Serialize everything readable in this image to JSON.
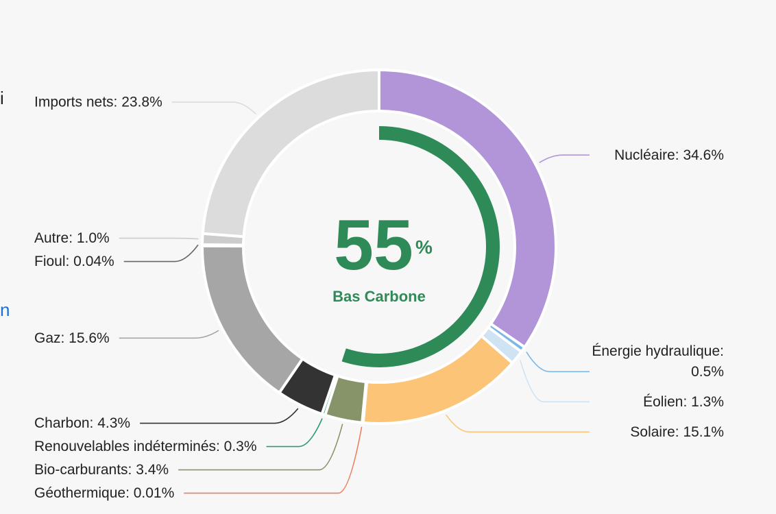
{
  "edge_text": {
    "left_top": "i",
    "left_middle": "n"
  },
  "center": {
    "value": "55",
    "unit": "%",
    "caption": "Bas Carbone",
    "color": "#2e8b57",
    "low_carbon_fraction": 0.55
  },
  "chart_data": {
    "type": "pie",
    "title": "",
    "start": "top",
    "direction": "clockwise",
    "series": [
      {
        "name": "Nucléaire",
        "label": "Nucléaire: 34.6%",
        "value": 34.6,
        "color": "#b195d8",
        "label_side": "right"
      },
      {
        "name": "Énergie hydraulique",
        "label": [
          "Énergie hydraulique:",
          "0.5%"
        ],
        "value": 0.5,
        "color": "#7cb8e6",
        "label_side": "right"
      },
      {
        "name": "Éolien",
        "label": "Éolien: 1.3%",
        "value": 1.3,
        "color": "#cfe3f3",
        "label_side": "right"
      },
      {
        "name": "Solaire",
        "label": "Solaire: 15.1%",
        "value": 15.1,
        "color": "#fbc477",
        "label_side": "right"
      },
      {
        "name": "Géothermique",
        "label": "Géothermique: 0.01%",
        "value": 0.01,
        "color": "#ee7e5e",
        "label_side": "left"
      },
      {
        "name": "Bio-carburants",
        "label": "Bio-carburants: 3.4%",
        "value": 3.4,
        "color": "#879368",
        "label_side": "left"
      },
      {
        "name": "Renouvelables indéterminés",
        "label": "Renouvelables indéterminés: 0.3%",
        "value": 0.3,
        "color": "#2e9a73",
        "label_side": "left"
      },
      {
        "name": "Charbon",
        "label": "Charbon: 4.3%",
        "value": 4.3,
        "color": "#333333",
        "label_side": "left"
      },
      {
        "name": "Gaz",
        "label": "Gaz: 15.6%",
        "value": 15.6,
        "color": "#a6a6a6",
        "label_side": "left"
      },
      {
        "name": "Fioul",
        "label": "Fioul: 0.04%",
        "value": 0.04,
        "color": "#666666",
        "label_side": "left"
      },
      {
        "name": "Autre",
        "label": "Autre: 1.0%",
        "value": 1.0,
        "color": "#cccccc",
        "label_side": "left"
      },
      {
        "name": "Imports nets",
        "label": "Imports nets: 23.8%",
        "value": 23.8,
        "color": "#dcdcdc",
        "label_side": "left"
      }
    ]
  }
}
